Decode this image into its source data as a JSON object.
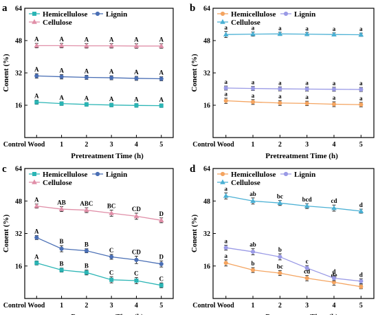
{
  "figure": {
    "chart_data": [
      {
        "type": "line",
        "panel_label": "a",
        "categories": [
          "Control Wood",
          "1",
          "2",
          "3",
          "4",
          "5"
        ],
        "xlabel": "Pretreatment Time (h)",
        "ylabel": "Conent (%)",
        "ylim": [
          0,
          64
        ],
        "yticks": [
          "16",
          "32",
          "48",
          "64"
        ],
        "grid": false,
        "legend": "top",
        "series": [
          {
            "name": "Hemicellulose",
            "color": "#2bb5b5",
            "marker": "square",
            "values": [
              17.5,
              16.8,
              16.4,
              16.1,
              15.9,
              15.8
            ],
            "errors": [
              1.0,
              0.9,
              0.9,
              0.9,
              0.9,
              0.9
            ],
            "labels": [
              "A",
              "A",
              "A",
              "A",
              "A",
              "A"
            ]
          },
          {
            "name": "Lignin",
            "color": "#4a6fb5",
            "marker": "circle",
            "values": [
              30.5,
              30.1,
              29.8,
              29.6,
              29.3,
              29.1
            ],
            "errors": [
              1.1,
              1.1,
              1.0,
              1.0,
              1.0,
              1.0
            ],
            "labels": [
              "A",
              "A",
              "A",
              "A",
              "A",
              "A"
            ]
          },
          {
            "name": "Cellulose",
            "color": "#e08fa8",
            "marker": "triangle",
            "values": [
              45.5,
              45.5,
              45.4,
              45.4,
              45.3,
              45.3
            ],
            "errors": [
              1.1,
              1.1,
              1.1,
              1.1,
              1.1,
              1.1
            ],
            "labels": [
              "A",
              "A",
              "A",
              "A",
              "A",
              "A"
            ]
          }
        ]
      },
      {
        "type": "line",
        "panel_label": "b",
        "categories": [
          "Control Wood",
          "1",
          "2",
          "3",
          "4",
          "5"
        ],
        "xlabel": "Pretreatment Time (h)",
        "ylabel": "Conent (%)",
        "ylim": [
          0,
          64
        ],
        "yticks": [
          "16",
          "32",
          "48",
          "64"
        ],
        "grid": false,
        "legend": "top",
        "series": [
          {
            "name": "Hemicellulose",
            "color": "#f4a460",
            "marker": "circle",
            "values": [
              18.2,
              17.6,
              17.1,
              16.9,
              16.5,
              16.3
            ],
            "errors": [
              1.3,
              1.2,
              1.2,
              1.1,
              1.2,
              1.1
            ],
            "labels": [
              "a",
              "a",
              "a",
              "a",
              "a",
              "a"
            ]
          },
          {
            "name": "Lignin",
            "color": "#9a9ae6",
            "marker": "circle",
            "values": [
              24.5,
              24.3,
              24.1,
              24.0,
              23.9,
              23.8
            ],
            "errors": [
              1.0,
              1.0,
              1.0,
              1.0,
              1.0,
              1.0
            ],
            "labels": [
              "a",
              "a",
              "a",
              "a",
              "a",
              "a"
            ]
          },
          {
            "name": "Cellulose",
            "color": "#4ab0d4",
            "marker": "triangle",
            "values": [
              51.0,
              51.2,
              51.3,
              51.2,
              51.0,
              50.9
            ],
            "errors": [
              1.5,
              1.0,
              0.8,
              0.8,
              0.8,
              0.8
            ],
            "labels": [
              "a",
              "a",
              "a",
              "a",
              "a",
              "a"
            ]
          }
        ]
      },
      {
        "type": "line",
        "panel_label": "c",
        "categories": [
          "Control Wood",
          "1",
          "2",
          "3",
          "4",
          "5"
        ],
        "xlabel": "Pretreatment Time (h)",
        "ylabel": "Conent (%)",
        "ylim": [
          0,
          64
        ],
        "yticks": [
          "16",
          "32",
          "48",
          "64"
        ],
        "grid": false,
        "legend": "top",
        "series": [
          {
            "name": "Hemicellulose",
            "color": "#2bb5b5",
            "marker": "square",
            "values": [
              17.5,
              14.0,
              12.8,
              9.2,
              8.8,
              6.5
            ],
            "errors": [
              1.0,
              1.0,
              1.2,
              1.5,
              1.5,
              1.2
            ],
            "labels": [
              "A",
              "B",
              "B",
              "C",
              "C",
              "C"
            ]
          },
          {
            "name": "Lignin",
            "color": "#4a6fb5",
            "marker": "circle",
            "values": [
              30.0,
              24.5,
              23.5,
              20.5,
              19.0,
              17.0
            ],
            "errors": [
              1.0,
              1.5,
              1.0,
              1.2,
              1.8,
              1.5
            ],
            "labels": [
              "A",
              "B",
              "B",
              "C",
              "CD",
              "D"
            ]
          },
          {
            "name": "Cellulose",
            "color": "#e08fa8",
            "marker": "triangle",
            "values": [
              45.5,
              44.0,
              43.5,
              42.0,
              40.5,
              38.5
            ],
            "errors": [
              1.0,
              1.2,
              1.2,
              1.5,
              1.5,
              1.2
            ],
            "labels": [
              "A",
              "AB",
              "ABC",
              "BC",
              "CD",
              "D"
            ]
          }
        ]
      },
      {
        "type": "line",
        "panel_label": "d",
        "categories": [
          "Control Wood",
          "1",
          "2",
          "3",
          "4",
          "5"
        ],
        "xlabel": "Pretreatment Time (h)",
        "ylabel": "Conent (%)",
        "ylim": [
          0,
          64
        ],
        "yticks": [
          "16",
          "32",
          "48",
          "64"
        ],
        "grid": false,
        "legend": "top",
        "series": [
          {
            "name": "Hemicellulose",
            "color": "#f4a460",
            "marker": "circle",
            "values": [
              17.5,
              14.0,
              12.5,
              10.0,
              8.0,
              5.8
            ],
            "errors": [
              1.5,
              1.2,
              1.2,
              1.3,
              1.5,
              1.0
            ],
            "labels": [
              "a",
              "b",
              "bc",
              "cd",
              "de",
              "e"
            ]
          },
          {
            "name": "Lignin",
            "color": "#9a9ae6",
            "marker": "circle",
            "values": [
              25.0,
              23.0,
              20.5,
              15.0,
              10.0,
              8.5
            ],
            "errors": [
              1.2,
              1.5,
              1.5,
              1.2,
              1.2,
              1.2
            ],
            "labels": [
              "a",
              "ab",
              "b",
              "c",
              "d",
              "d"
            ]
          },
          {
            "name": "Cellulose",
            "color": "#4ab0d4",
            "marker": "triangle",
            "values": [
              50.5,
              48.0,
              47.0,
              45.5,
              44.5,
              43.0
            ],
            "errors": [
              1.5,
              1.5,
              1.2,
              1.2,
              1.5,
              1.0
            ],
            "labels": [
              "a",
              "ab",
              "bc",
              "bcd",
              "cd",
              "d"
            ]
          }
        ]
      }
    ]
  }
}
